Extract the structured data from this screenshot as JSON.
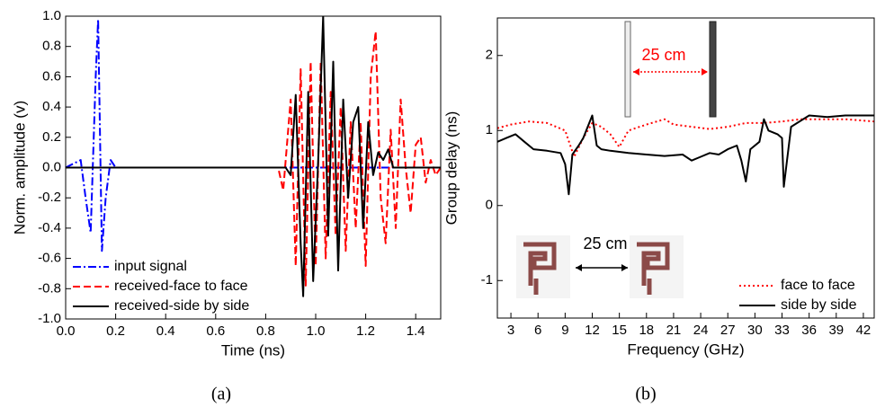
{
  "chart_data": [
    {
      "type": "line",
      "caption": "(a)",
      "xlabel": "Time (ns)",
      "ylabel": "Norm. amplitude (v)",
      "xlim": [
        0,
        1.5
      ],
      "ylim": [
        -1,
        1
      ],
      "xticks": [
        {
          "value": 0,
          "label": "0.0"
        },
        0.2,
        0.4,
        0.6,
        0.8,
        {
          "value": 1,
          "label": "1.0"
        },
        1.2,
        1.4
      ],
      "yticks": [
        {
          "value": -1,
          "label": "-1.0"
        },
        -0.8,
        -0.6,
        -0.4,
        -0.2,
        {
          "value": 0,
          "label": "0.0"
        },
        0.2,
        0.4,
        0.6,
        0.8,
        {
          "value": 1,
          "label": "1.0"
        }
      ],
      "legend": "lower left",
      "series": [
        {
          "name": "input signal",
          "color": "#0000ff",
          "style": "dash-dot",
          "x": [
            0,
            0.06,
            0.08,
            0.1,
            0.12,
            0.13,
            0.145,
            0.16,
            0.18,
            0.2,
            1.5
          ],
          "values": [
            0,
            0.05,
            -0.2,
            -0.43,
            0.6,
            0.98,
            -0.55,
            -0.2,
            0.05,
            0,
            0
          ]
        },
        {
          "name": "received-face to face",
          "color": "#ff0000",
          "style": "dash",
          "x": [
            0,
            0.85,
            0.87,
            0.9,
            0.92,
            0.94,
            0.96,
            0.98,
            1.0,
            1.02,
            1.04,
            1.06,
            1.08,
            1.1,
            1.12,
            1.14,
            1.16,
            1.18,
            1.2,
            1.22,
            1.24,
            1.26,
            1.28,
            1.3,
            1.32,
            1.34,
            1.36,
            1.38,
            1.4,
            1.42,
            1.44,
            1.46,
            1.48,
            1.5
          ],
          "values": [
            0,
            0,
            -0.15,
            0.45,
            -0.65,
            0.65,
            -0.78,
            0.7,
            -0.65,
            0.7,
            -0.6,
            0.5,
            -0.45,
            0.4,
            -0.55,
            0.3,
            -0.4,
            0.3,
            -0.65,
            0.6,
            0.9,
            -0.2,
            -0.5,
            0.25,
            -0.4,
            0.45,
            0.0,
            -0.3,
            0.15,
            0.2,
            -0.1,
            0.05,
            -0.05,
            0
          ]
        },
        {
          "name": "received-side by side",
          "color": "#000000",
          "style": "solid",
          "x": [
            0,
            0.88,
            0.9,
            0.92,
            0.94,
            0.95,
            0.97,
            0.99,
            1.01,
            1.03,
            1.05,
            1.07,
            1.09,
            1.11,
            1.13,
            1.15,
            1.17,
            1.19,
            1.21,
            1.23,
            1.25,
            1.27,
            1.29,
            1.31,
            1.5
          ],
          "values": [
            0,
            0,
            -0.05,
            0.48,
            -0.5,
            -0.85,
            0.5,
            -0.75,
            0.05,
            1.0,
            -0.45,
            0.7,
            -0.68,
            0.45,
            -0.2,
            0.3,
            0.4,
            -0.4,
            0.3,
            -0.05,
            0.1,
            0.05,
            0.12,
            0,
            0
          ]
        }
      ]
    },
    {
      "type": "line",
      "caption": "(b)",
      "xlabel": "Frequency (GHz)",
      "ylabel": "Group delay (ns)",
      "xlim": [
        1.5,
        43.2
      ],
      "ylim": [
        -1.5,
        2.5
      ],
      "xticks": [
        3,
        6,
        9,
        12,
        15,
        18,
        21,
        24,
        27,
        30,
        33,
        36,
        39,
        42
      ],
      "yticks": [
        -1,
        0,
        1,
        2
      ],
      "legend": "lower right",
      "annotations": [
        "25 cm",
        "25 cm"
      ],
      "series": [
        {
          "name": "face to face",
          "color": "#ff0000",
          "style": "dot",
          "x": [
            1.5,
            3,
            5,
            7,
            9,
            10,
            11,
            12,
            13,
            14,
            15,
            16,
            18,
            20,
            21,
            23,
            25,
            27,
            29,
            31,
            33,
            35,
            37,
            40,
            43.2
          ],
          "values": [
            1.03,
            1.08,
            1.12,
            1.1,
            1.0,
            0.65,
            0.9,
            1.1,
            1.05,
            0.95,
            0.78,
            1.0,
            1.08,
            1.15,
            1.08,
            1.05,
            1.02,
            1.05,
            1.1,
            1.1,
            1.12,
            1.15,
            1.15,
            1.15,
            1.12
          ]
        },
        {
          "name": "side by side",
          "color": "#000000",
          "style": "solid",
          "x": [
            1.5,
            2.5,
            3.5,
            4.5,
            5.5,
            7,
            8.5,
            9,
            9.4,
            9.8,
            10.5,
            11,
            12,
            12.5,
            13,
            14,
            16,
            18,
            20,
            22,
            23,
            24,
            25,
            26,
            27,
            28,
            28.5,
            29,
            29.5,
            30.5,
            31,
            31.5,
            32.5,
            33,
            33.2,
            34,
            36,
            38,
            40,
            43.2
          ],
          "values": [
            0.85,
            0.9,
            0.95,
            0.85,
            0.75,
            0.73,
            0.7,
            0.55,
            0.15,
            0.68,
            0.8,
            0.9,
            1.2,
            0.8,
            0.75,
            0.73,
            0.7,
            0.68,
            0.66,
            0.68,
            0.6,
            0.65,
            0.7,
            0.68,
            0.75,
            0.8,
            0.6,
            0.32,
            0.75,
            0.85,
            1.15,
            1.0,
            0.95,
            0.9,
            0.25,
            1.05,
            1.2,
            1.18,
            1.2,
            1.2
          ]
        }
      ]
    }
  ]
}
